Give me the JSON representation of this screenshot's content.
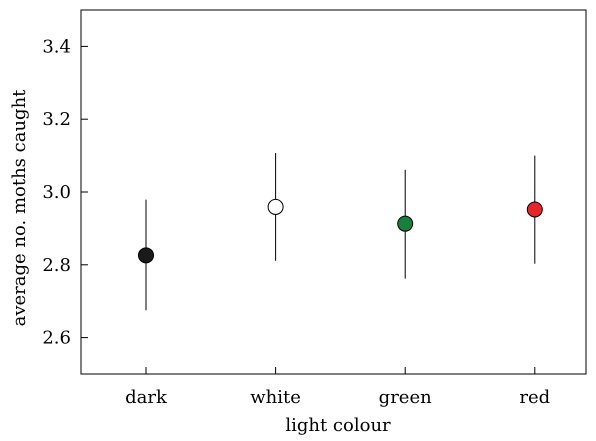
{
  "chart_data": {
    "type": "scatter",
    "title": "",
    "xlabel": "light colour",
    "ylabel": "average no. moths caught",
    "categories": [
      "dark",
      "white",
      "green",
      "red"
    ],
    "ylim": [
      2.5,
      3.5
    ],
    "yticks": [
      2.6,
      2.8,
      3.0,
      3.2,
      3.4
    ],
    "ytick_labels": [
      "2.6",
      "2.8",
      "3.0",
      "3.2",
      "3.4"
    ],
    "grid": false,
    "legend": "none",
    "points": [
      {
        "category": "dark",
        "mean": 2.826,
        "lower": 2.675,
        "upper": 2.979,
        "color": "#1a1a1a"
      },
      {
        "category": "white",
        "mean": 2.959,
        "lower": 2.811,
        "upper": 3.107,
        "color": "#ffffff"
      },
      {
        "category": "green",
        "mean": 2.913,
        "lower": 2.762,
        "upper": 3.061,
        "color": "#17803d"
      },
      {
        "category": "red",
        "mean": 2.952,
        "lower": 2.803,
        "upper": 3.1,
        "color": "#e5262b"
      }
    ]
  }
}
